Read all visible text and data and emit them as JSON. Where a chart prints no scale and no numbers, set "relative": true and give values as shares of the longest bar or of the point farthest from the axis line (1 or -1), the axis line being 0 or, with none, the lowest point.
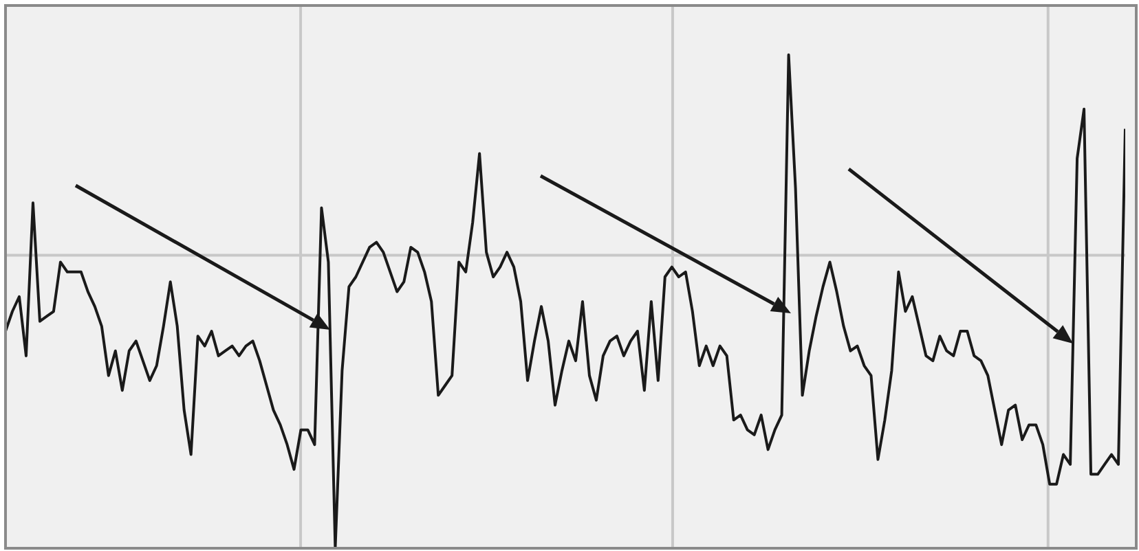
{
  "chart_data": {
    "type": "line",
    "relative": true,
    "color": "#1a1a1a",
    "marker": "none",
    "categories": [
      null,
      null,
      null,
      null,
      null,
      null,
      null,
      null,
      null,
      null,
      null,
      null,
      null,
      null,
      null,
      null,
      null,
      null,
      null,
      null,
      null,
      null,
      null,
      null,
      null,
      null,
      null,
      null,
      null,
      null,
      null,
      null,
      null,
      null,
      null,
      null,
      null,
      null,
      null,
      null,
      null,
      null,
      null,
      null,
      null,
      null,
      null,
      null,
      null,
      null,
      null,
      null,
      null,
      null,
      null,
      null,
      null,
      null,
      null,
      null,
      null,
      null,
      null,
      null,
      null,
      null,
      null,
      null,
      null,
      null,
      null,
      null,
      null,
      null,
      null,
      null,
      null,
      null,
      null,
      null,
      null,
      null,
      null,
      null,
      null,
      null,
      null,
      null,
      null,
      null,
      null,
      null,
      null,
      null,
      null,
      null,
      null,
      null,
      null,
      null,
      null,
      null,
      null,
      null,
      null,
      null,
      null,
      null,
      null,
      null,
      null,
      null,
      null,
      null,
      null,
      null,
      null,
      null,
      null,
      null,
      null,
      null,
      null,
      null,
      null,
      null,
      null,
      null,
      null,
      null,
      null,
      null,
      null,
      null,
      null,
      null,
      null,
      null,
      null,
      null,
      null,
      null,
      null,
      null,
      null,
      null,
      null,
      null,
      null,
      null,
      null,
      null,
      null,
      null,
      null,
      null,
      null,
      null,
      null,
      null,
      null,
      null,
      null,
      null
    ],
    "values": [
      0.44,
      0.48,
      0.51,
      0.39,
      0.7,
      0.46,
      0.47,
      0.48,
      0.58,
      0.56,
      0.56,
      0.56,
      0.52,
      0.49,
      0.45,
      0.35,
      0.4,
      0.32,
      0.4,
      0.42,
      0.38,
      0.34,
      0.37,
      0.45,
      0.54,
      0.45,
      0.28,
      0.19,
      0.43,
      0.41,
      0.44,
      0.39,
      0.4,
      0.41,
      0.39,
      0.41,
      0.42,
      0.38,
      0.33,
      0.28,
      0.25,
      0.21,
      0.16,
      0.24,
      0.24,
      0.21,
      0.69,
      0.58,
      0,
      0.36,
      0.53,
      0.55,
      0.58,
      0.61,
      0.62,
      0.6,
      0.56,
      0.52,
      0.54,
      0.61,
      0.6,
      0.56,
      0.5,
      0.31,
      0.33,
      0.35,
      0.58,
      0.56,
      0.66,
      0.8,
      0.6,
      0.55,
      0.57,
      0.6,
      0.57,
      0.5,
      0.34,
      0.42,
      0.49,
      0.42,
      0.29,
      0.36,
      0.42,
      0.38,
      0.5,
      0.35,
      0.3,
      0.39,
      0.42,
      0.43,
      0.39,
      0.42,
      0.44,
      0.32,
      0.5,
      0.34,
      0.55,
      0.57,
      0.55,
      0.56,
      0.48,
      0.37,
      0.41,
      0.37,
      0.41,
      0.39,
      0.26,
      0.27,
      0.24,
      0.23,
      0.27,
      0.2,
      0.24,
      0.27,
      1,
      0.73,
      0.31,
      0.4,
      0.47,
      0.53,
      0.58,
      0.52,
      0.45,
      0.4,
      0.41,
      0.37,
      0.35,
      0.18,
      0.26,
      0.36,
      0.56,
      0.48,
      0.51,
      0.45,
      0.39,
      0.38,
      0.43,
      0.4,
      0.39,
      0.44,
      0.44,
      0.39,
      0.38,
      0.35,
      0.28,
      0.21,
      0.28,
      0.29,
      0.22,
      0.25,
      0.25,
      0.21,
      0.13,
      0.13,
      0.19,
      0.17,
      0.79,
      0.89,
      0.15,
      0.15,
      0.17,
      0.19,
      0.17,
      0.85
    ]
  }
}
